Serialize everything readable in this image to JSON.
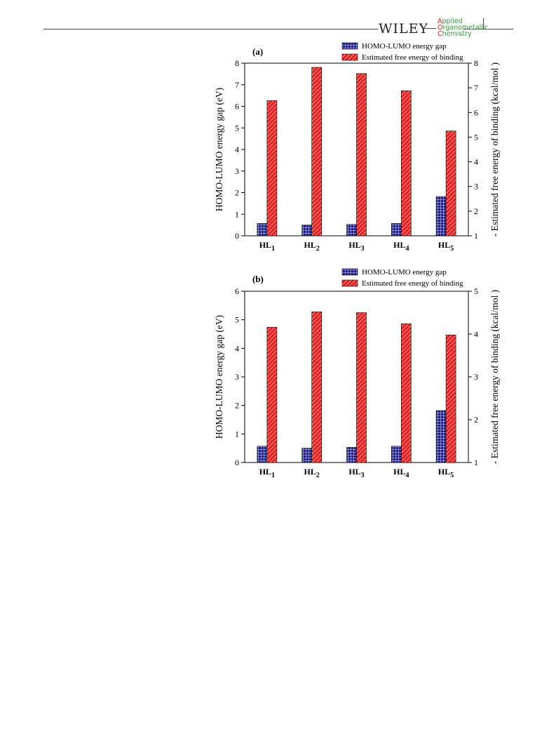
{
  "header": {
    "publisher": "WILEY",
    "journal_line1": "Applied",
    "journal_line2": "Organometallic",
    "journal_line3": "Chemistry"
  },
  "colors": {
    "gap_fill": "#1a1a80",
    "gap_grid": "#8a8ad8",
    "binding_fill": "#ee1c1c",
    "binding_hatch": "#ff9a9a"
  },
  "chart_data": [
    {
      "type": "bar",
      "panel_label": "(a)",
      "categories": [
        "HL1",
        "HL2",
        "HL3",
        "HL4",
        "HL5"
      ],
      "category_labels": [
        {
          "base": "HL",
          "sub": "1"
        },
        {
          "base": "HL",
          "sub": "2"
        },
        {
          "base": "HL",
          "sub": "3"
        },
        {
          "base": "HL",
          "sub": "4"
        },
        {
          "base": "HL",
          "sub": "5"
        }
      ],
      "ylabel": "HOMO-LUMO energy gap (eV)",
      "ylim": [
        0,
        8
      ],
      "yticks": [
        0,
        1,
        2,
        3,
        4,
        5,
        6,
        7,
        8
      ],
      "y2label": "- Estimated free energy of binding  (kcal/mol )",
      "y2lim": [
        1,
        8
      ],
      "y2ticks": [
        1,
        2,
        3,
        4,
        5,
        6,
        7,
        8
      ],
      "legend_position": "top-right",
      "series": [
        {
          "name": "HOMO-LUMO energy gap",
          "axis": "left",
          "values": [
            0.57,
            0.5,
            0.53,
            0.57,
            1.82
          ]
        },
        {
          "name": "Estimated free energy of binding",
          "axis": "right",
          "values": [
            6.48,
            7.83,
            7.58,
            6.88,
            5.25
          ]
        }
      ]
    },
    {
      "type": "bar",
      "panel_label": "(b)",
      "categories": [
        "HL1",
        "HL2",
        "HL3",
        "HL4",
        "HL5"
      ],
      "category_labels": [
        {
          "base": "HL",
          "sub": "1"
        },
        {
          "base": "HL",
          "sub": "2"
        },
        {
          "base": "HL",
          "sub": "3"
        },
        {
          "base": "HL",
          "sub": "4"
        },
        {
          "base": "HL",
          "sub": "5"
        }
      ],
      "ylabel": "HOMO-LUMO energy gap (eV)",
      "ylim": [
        0,
        6
      ],
      "yticks": [
        0,
        1,
        2,
        3,
        4,
        5,
        6
      ],
      "y2label": "- Estimated free energy of binding  (kcal/mol )",
      "y2lim": [
        1,
        5
      ],
      "y2ticks": [
        1,
        2,
        3,
        4,
        5
      ],
      "legend_position": "top-right",
      "series": [
        {
          "name": "HOMO-LUMO energy gap",
          "axis": "left",
          "values": [
            0.57,
            0.5,
            0.53,
            0.57,
            1.82
          ]
        },
        {
          "name": "Estimated free energy of binding",
          "axis": "right",
          "values": [
            4.16,
            4.52,
            4.5,
            4.24,
            3.98
          ]
        }
      ]
    }
  ]
}
